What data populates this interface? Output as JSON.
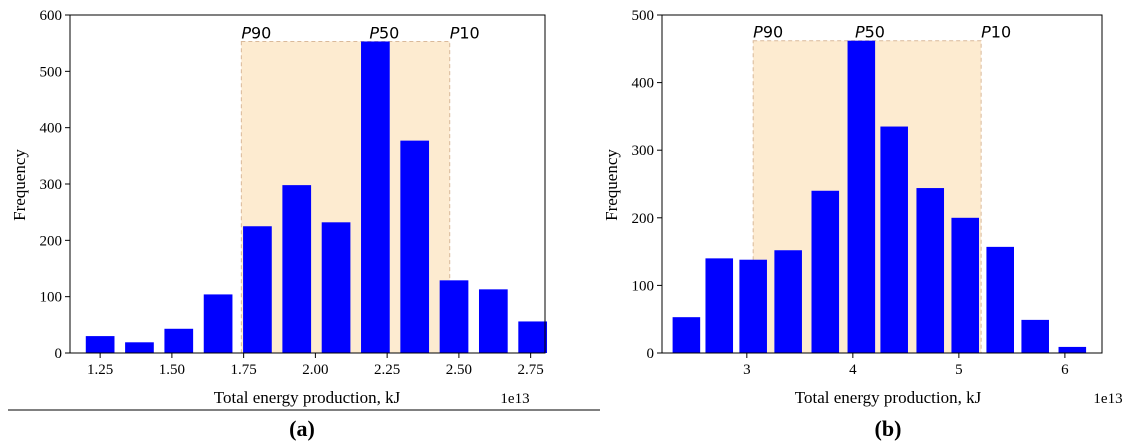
{
  "panels": [
    {
      "caption": "(a)",
      "chart_data": {
        "type": "bar",
        "xlabel": "Total energy production, kJ",
        "ylabel": "Frequency",
        "offset_text": "1e13",
        "x_ticks": [
          1.25,
          1.5,
          1.75,
          2.0,
          2.25,
          2.5,
          2.75
        ],
        "x_tick_labels": [
          "1.25",
          "1.50",
          "1.75",
          "2.00",
          "2.25",
          "2.50",
          "2.75"
        ],
        "xlim": [
          1.145,
          2.8
        ],
        "ylim": [
          0,
          600
        ],
        "y_ticks": [
          0,
          100,
          200,
          300,
          400,
          500,
          600
        ],
        "bar_width": 0.1,
        "bar_color": "#0000ff",
        "x": [
          1.25,
          1.387,
          1.524,
          1.661,
          1.798,
          1.935,
          2.072,
          2.209,
          2.346,
          2.483,
          2.62,
          2.757
        ],
        "values": [
          30,
          19,
          43,
          104,
          225,
          298,
          232,
          553,
          377,
          129,
          113,
          56
        ],
        "shaded_region": {
          "x_start": 1.742,
          "x_end": 2.468,
          "y_top": 553,
          "color": "#fdebd0"
        },
        "percentile_labels": [
          {
            "text": "P90",
            "x": 1.742
          },
          {
            "text": "P50",
            "x": 2.188
          },
          {
            "text": "P10",
            "x": 2.468
          }
        ]
      }
    },
    {
      "caption": "(b)",
      "chart_data": {
        "type": "bar",
        "xlabel": "Total energy production, kJ",
        "ylabel": "Frequency",
        "offset_text": "1e13",
        "x_ticks": [
          3,
          4,
          5,
          6
        ],
        "x_tick_labels": [
          "3",
          "4",
          "5",
          "6"
        ],
        "xlim": [
          2.2,
          6.35
        ],
        "ylim": [
          0,
          500
        ],
        "y_ticks": [
          0,
          100,
          200,
          300,
          400,
          500
        ],
        "bar_width": 0.26,
        "bar_color": "#0000ff",
        "x": [
          2.43,
          2.74,
          3.06,
          3.39,
          3.74,
          4.08,
          4.39,
          4.73,
          5.06,
          5.39,
          5.72,
          6.07
        ],
        "values": [
          53,
          140,
          138,
          152,
          240,
          462,
          335,
          244,
          200,
          157,
          49,
          9
        ],
        "shaded_region": {
          "x_start": 3.06,
          "x_end": 5.21,
          "y_top": 462,
          "color": "#fdebd0"
        },
        "percentile_labels": [
          {
            "text": "P90",
            "x": 3.06
          },
          {
            "text": "P50",
            "x": 4.02
          },
          {
            "text": "P10",
            "x": 5.21
          }
        ]
      }
    }
  ]
}
